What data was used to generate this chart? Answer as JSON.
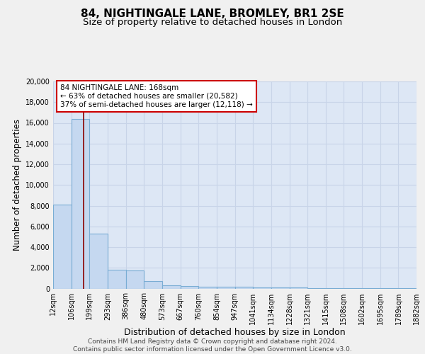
{
  "title": "84, NIGHTINGALE LANE, BROMLEY, BR1 2SE",
  "subtitle": "Size of property relative to detached houses in London",
  "xlabel": "Distribution of detached houses by size in London",
  "ylabel": "Number of detached properties",
  "bin_edges": [
    12,
    106,
    199,
    293,
    386,
    480,
    573,
    667,
    760,
    854,
    947,
    1041,
    1134,
    1228,
    1321,
    1415,
    1508,
    1602,
    1695,
    1789,
    1882
  ],
  "bar_heights": [
    8100,
    16400,
    5300,
    1800,
    1750,
    700,
    300,
    250,
    200,
    190,
    170,
    100,
    80,
    70,
    60,
    50,
    40,
    30,
    25,
    20
  ],
  "bar_color": "#c5d8f0",
  "bar_edge_color": "#7aadd4",
  "bg_color": "#dde7f5",
  "grid_color": "#c8d4e8",
  "fig_bg_color": "#f0f0f0",
  "red_line_x": 168,
  "annotation_line1": "84 NIGHTINGALE LANE: 168sqm",
  "annotation_line2": "← 63% of detached houses are smaller (20,582)",
  "annotation_line3": "37% of semi-detached houses are larger (12,118) →",
  "annotation_box_color": "#cc0000",
  "ylim": [
    0,
    20000
  ],
  "yticks": [
    0,
    2000,
    4000,
    6000,
    8000,
    10000,
    12000,
    14000,
    16000,
    18000,
    20000
  ],
  "footer_text": "Contains HM Land Registry data © Crown copyright and database right 2024.\nContains public sector information licensed under the Open Government Licence v3.0.",
  "title_fontsize": 11,
  "subtitle_fontsize": 9.5,
  "tick_fontsize": 7,
  "ylabel_fontsize": 8.5,
  "xlabel_fontsize": 9,
  "footer_fontsize": 6.5,
  "annotation_fontsize": 7.5
}
